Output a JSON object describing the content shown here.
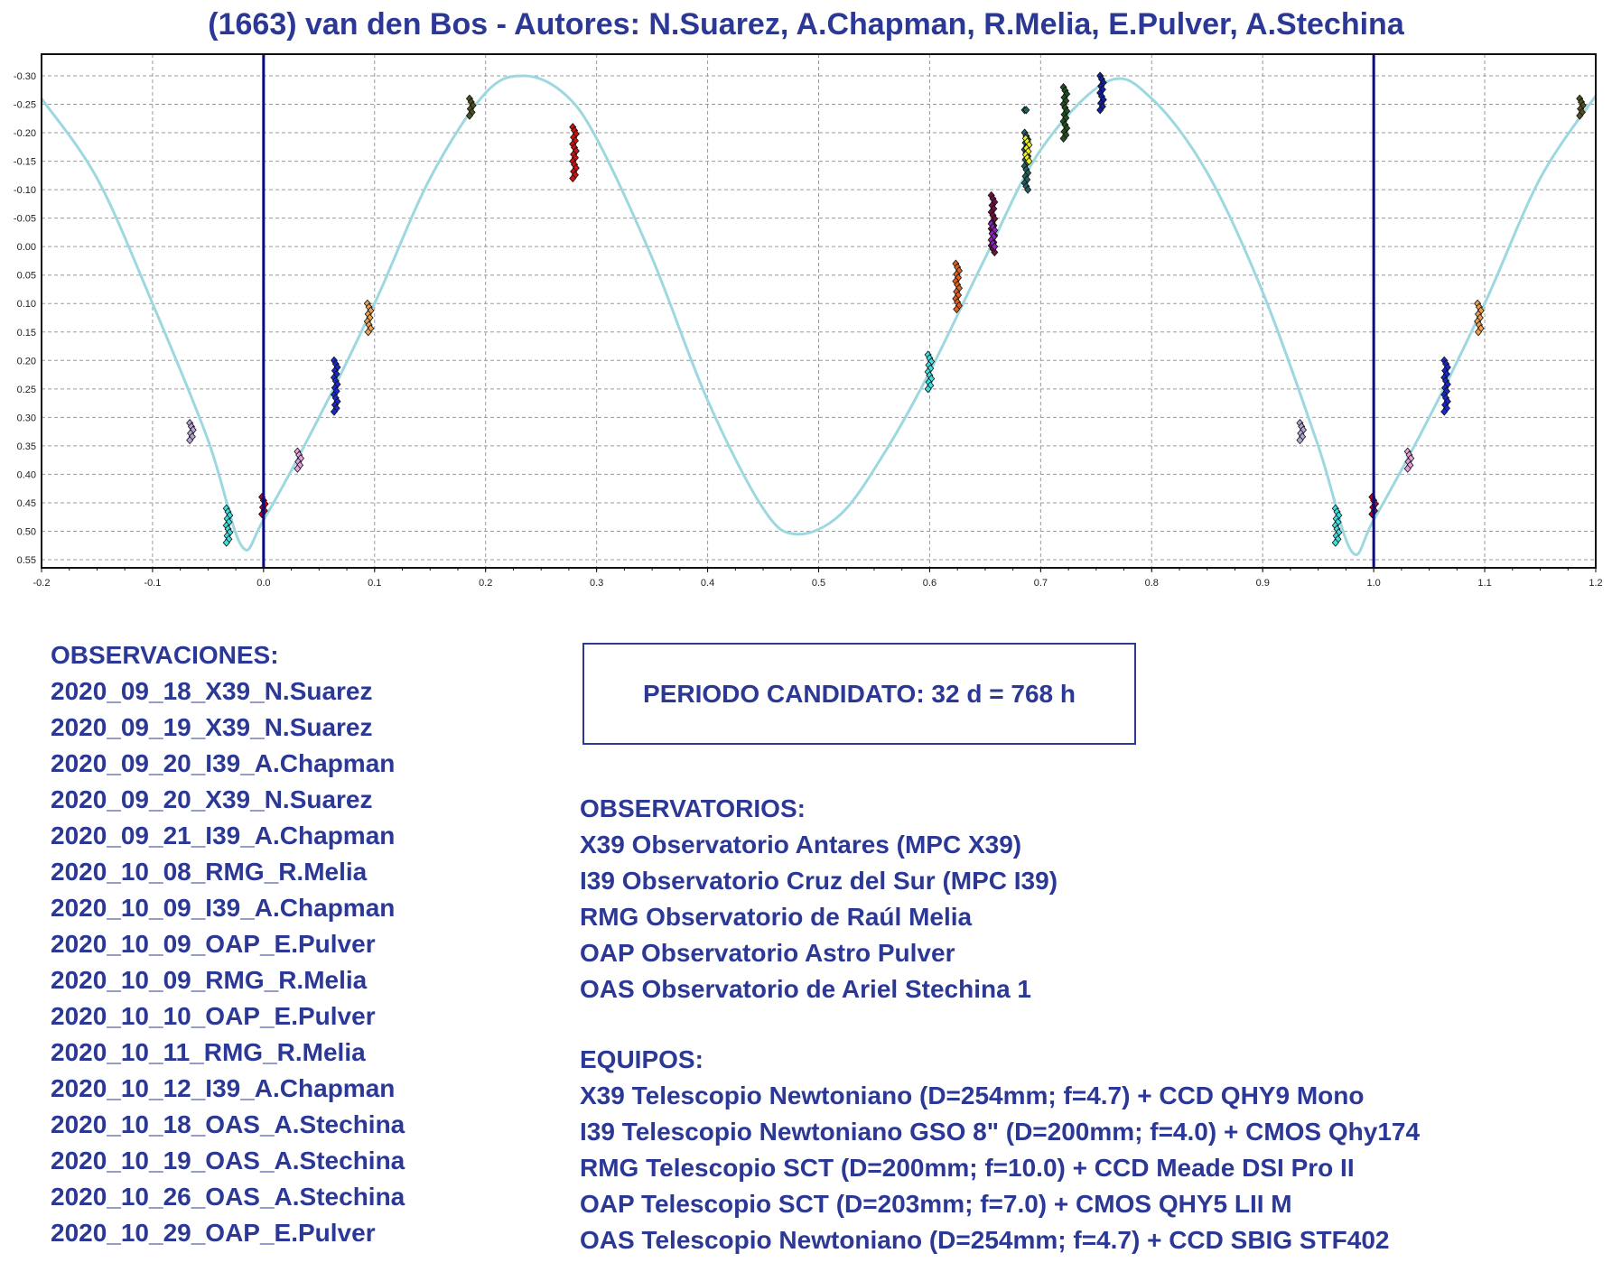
{
  "title": "(1663) van den Bos - Autores: N.Suarez, A.Chapman, R.Melia, E.Pulver, A.Stechina",
  "observaciones": {
    "heading": "OBSERVACIONES:",
    "items": [
      "2020_09_18_X39_N.Suarez",
      "2020_09_19_X39_N.Suarez",
      "2020_09_20_I39_A.Chapman",
      "2020_09_20_X39_N.Suarez",
      "2020_09_21_I39_A.Chapman",
      "2020_10_08_RMG_R.Melia",
      "2020_10_09_I39_A.Chapman",
      "2020_10_09_OAP_E.Pulver",
      "2020_10_09_RMG_R.Melia",
      "2020_10_10_OAP_E.Pulver",
      "2020_10_11_RMG_R.Melia",
      "2020_10_12_I39_A.Chapman",
      "2020_10_18_OAS_A.Stechina",
      "2020_10_19_OAS_A.Stechina",
      "2020_10_26_OAS_A.Stechina",
      "2020_10_29_OAP_E.Pulver"
    ]
  },
  "periodo": "PERIODO CANDIDATO: 32 d = 768 h",
  "observatorios": {
    "heading": "OBSERVATORIOS:",
    "items": [
      "X39 Observatorio Antares (MPC X39)",
      "I39 Observatorio Cruz del Sur (MPC I39)",
      "RMG Observatorio de Raúl Melia",
      "OAP Observatorio Astro Pulver",
      "OAS Observatorio de Ariel Stechina 1"
    ]
  },
  "equipos": {
    "heading": "EQUIPOS:",
    "items": [
      "X39 Telescopio Newtoniano (D=254mm; f=4.7) + CCD QHY9 Mono",
      "I39 Telescopio Newtoniano GSO 8\" (D=200mm; f=4.0) + CMOS Qhy174",
      "RMG Telescopio SCT (D=200mm; f=10.0) + CCD Meade DSI Pro II",
      "OAP Telescopio SCT (D=203mm; f=7.0) + CMOS QHY5 LII M",
      "OAS Telescopio Newtoniano (D=254mm; f=4.7) + CCD SBIG STF402"
    ]
  },
  "colors": {
    "text": "#2b3896",
    "fit_curve": "#9dd8e0",
    "phase_markers": "#0a0a7a",
    "grid": "#9a9a9a"
  },
  "chart_data": {
    "type": "scatter",
    "xlim": [
      -0.2,
      1.2
    ],
    "ylim": [
      -0.33,
      0.57
    ],
    "y_inverted": true,
    "grid": true,
    "x_ticks": [
      "-0.2",
      "-0.1",
      "0.0",
      "0.1",
      "0.2",
      "0.3",
      "0.4",
      "0.5",
      "0.6",
      "0.7",
      "0.8",
      "0.9",
      "1.0",
      "1.1",
      "1.2"
    ],
    "y_ticks": [
      "-0.30",
      "-0.25",
      "-0.20",
      "-0.15",
      "-0.10",
      "-0.05",
      "0.00",
      "0.05",
      "0.10",
      "0.15",
      "0.20",
      "0.25",
      "0.30",
      "0.35",
      "0.40",
      "0.45",
      "0.50",
      "0.55"
    ],
    "phase_lines": [
      0.0,
      1.0
    ],
    "fit_curve": [
      [
        -0.2,
        -0.26
      ],
      [
        -0.15,
        -0.12
      ],
      [
        -0.1,
        0.1
      ],
      [
        -0.05,
        0.34
      ],
      [
        -0.02,
        0.525
      ],
      [
        0.0,
        0.48
      ],
      [
        0.05,
        0.3
      ],
      [
        0.1,
        0.1
      ],
      [
        0.15,
        -0.12
      ],
      [
        0.2,
        -0.27
      ],
      [
        0.235,
        -0.3
      ],
      [
        0.27,
        -0.27
      ],
      [
        0.3,
        -0.19
      ],
      [
        0.35,
        0.02
      ],
      [
        0.4,
        0.27
      ],
      [
        0.45,
        0.46
      ],
      [
        0.48,
        0.505
      ],
      [
        0.52,
        0.47
      ],
      [
        0.56,
        0.36
      ],
      [
        0.6,
        0.22
      ],
      [
        0.65,
        0.02
      ],
      [
        0.7,
        -0.17
      ],
      [
        0.76,
        -0.29
      ],
      [
        0.8,
        -0.26
      ],
      [
        0.85,
        -0.13
      ],
      [
        0.9,
        0.08
      ],
      [
        0.95,
        0.35
      ],
      [
        0.98,
        0.535
      ],
      [
        1.0,
        0.48
      ],
      [
        1.05,
        0.3
      ],
      [
        1.1,
        0.1
      ],
      [
        1.15,
        -0.12
      ],
      [
        1.2,
        -0.265
      ]
    ],
    "clusters": [
      {
        "x": -0.065,
        "y": [
          0.31,
          0.34
        ],
        "color": "#b4a4d8"
      },
      {
        "x": -0.032,
        "y": [
          0.46,
          0.52
        ],
        "color": "#40e0e0"
      },
      {
        "x": 0.0,
        "y": [
          0.44,
          0.47
        ],
        "color": "#c00020"
      },
      {
        "x": 0.032,
        "y": [
          0.36,
          0.39
        ],
        "color": "#e8a0e0"
      },
      {
        "x": 0.065,
        "y": [
          0.2,
          0.29
        ],
        "color": "#1a28d0"
      },
      {
        "x": 0.095,
        "y": [
          0.1,
          0.15
        ],
        "color": "#f0a050"
      },
      {
        "x": 0.187,
        "y": [
          -0.26,
          -0.23
        ],
        "color": "#505020"
      },
      {
        "x": 0.28,
        "y": [
          -0.21,
          -0.12
        ],
        "color": "#d01010"
      },
      {
        "x": 0.6,
        "y": [
          0.19,
          0.25
        ],
        "color": "#40e0e0"
      },
      {
        "x": 0.625,
        "y": [
          0.03,
          0.11
        ],
        "color": "#e06020"
      },
      {
        "x": 0.657,
        "y": [
          -0.09,
          0.01
        ],
        "color": "#701040"
      },
      {
        "x": 0.657,
        "y": [
          -0.04,
          0.0
        ],
        "color": "#9020c0"
      },
      {
        "x": 0.687,
        "y": [
          -0.2,
          -0.1
        ],
        "color": "#206060"
      },
      {
        "x": 0.688,
        "y": [
          -0.19,
          -0.15
        ],
        "color": "#f0f020"
      },
      {
        "x": 0.687,
        "y": [
          -0.24,
          -0.24
        ],
        "color": "#206060"
      },
      {
        "x": 0.722,
        "y": [
          -0.28,
          -0.19
        ],
        "color": "#205020"
      },
      {
        "x": 0.755,
        "y": [
          -0.3,
          -0.24
        ],
        "color": "#1020a0"
      },
      {
        "x": 0.935,
        "y": [
          0.31,
          0.34
        ],
        "color": "#b4a4d8"
      },
      {
        "x": 0.967,
        "y": [
          0.46,
          0.52
        ],
        "color": "#40e0e0"
      },
      {
        "x": 1.0,
        "y": [
          0.44,
          0.47
        ],
        "color": "#c00020"
      },
      {
        "x": 1.032,
        "y": [
          0.36,
          0.39
        ],
        "color": "#e8a0e0"
      },
      {
        "x": 1.065,
        "y": [
          0.2,
          0.29
        ],
        "color": "#1a28d0"
      },
      {
        "x": 1.095,
        "y": [
          0.1,
          0.15
        ],
        "color": "#f0a050"
      },
      {
        "x": 1.187,
        "y": [
          -0.26,
          -0.23
        ],
        "color": "#505020"
      }
    ]
  }
}
